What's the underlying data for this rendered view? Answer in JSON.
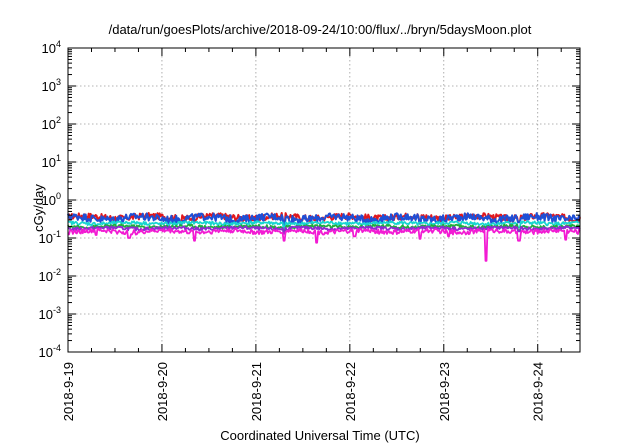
{
  "chart_data": {
    "type": "line",
    "title": "/data/run/goesPlots/archive/2018-09-24/10:00/flux/../bryn/5daysMoon.plot",
    "xlabel": "Coordinated Universal Time (UTC)",
    "ylabel": "cGy/day",
    "y_scale": "log",
    "ylim": [
      0.0001,
      10000
    ],
    "y_ticks": [
      {
        "base": "10",
        "exp": "-4"
      },
      {
        "base": "10",
        "exp": "-3"
      },
      {
        "base": "10",
        "exp": "-2"
      },
      {
        "base": "10",
        "exp": "-1"
      },
      {
        "base": "10",
        "exp": "0"
      },
      {
        "base": "10",
        "exp": "1"
      },
      {
        "base": "10",
        "exp": "2"
      },
      {
        "base": "10",
        "exp": "3"
      },
      {
        "base": "10",
        "exp": "4"
      }
    ],
    "x_ticks": [
      "2018-9-19",
      "2018-9-20",
      "2018-9-21",
      "2018-9-22",
      "2018-9-23",
      "2018-9-24"
    ],
    "xlim_days": [
      0,
      5.45
    ],
    "grid": true,
    "colors": [
      "#e0181e",
      "#1f4fd6",
      "#18d6d0",
      "#1fae3a",
      "#8e2bd0",
      "#f21bd3"
    ],
    "series": [
      {
        "color": "#e0181e",
        "base": 0.36,
        "spread": 0.07,
        "dips": [
          [
            1.2,
            0.23
          ],
          [
            2.3,
            0.22
          ],
          [
            3.75,
            0.25
          ],
          [
            4.8,
            0.27
          ]
        ]
      },
      {
        "color": "#1f4fd6",
        "base": 0.34,
        "spread": 0.08,
        "dips": [
          [
            1.2,
            0.22
          ],
          [
            2.3,
            0.21
          ],
          [
            3.75,
            0.24
          ],
          [
            4.8,
            0.26
          ]
        ]
      },
      {
        "color": "#18d6d0",
        "base": 0.245,
        "spread": 0.025,
        "dips": [
          [
            2.3,
            0.17
          ],
          [
            4.8,
            0.19
          ]
        ]
      },
      {
        "color": "#1fae3a",
        "base": 0.2,
        "spread": 0.02,
        "dips": [
          [
            2.3,
            0.15
          ],
          [
            4.8,
            0.16
          ]
        ]
      },
      {
        "color": "#8e2bd0",
        "base": 0.18,
        "spread": 0.018,
        "dips": [
          [
            2.3,
            0.13
          ],
          [
            4.8,
            0.15
          ]
        ]
      },
      {
        "color": "#f21bd3",
        "base": 0.15,
        "spread": 0.02,
        "dips": [
          [
            0.3,
            0.12
          ],
          [
            0.65,
            0.1
          ],
          [
            1.35,
            0.085
          ],
          [
            2.3,
            0.085
          ],
          [
            2.65,
            0.075
          ],
          [
            3.05,
            0.11
          ],
          [
            3.75,
            0.095
          ],
          [
            4.05,
            0.11
          ],
          [
            4.45,
            0.025
          ],
          [
            4.8,
            0.085
          ],
          [
            5.3,
            0.09
          ]
        ]
      }
    ]
  }
}
